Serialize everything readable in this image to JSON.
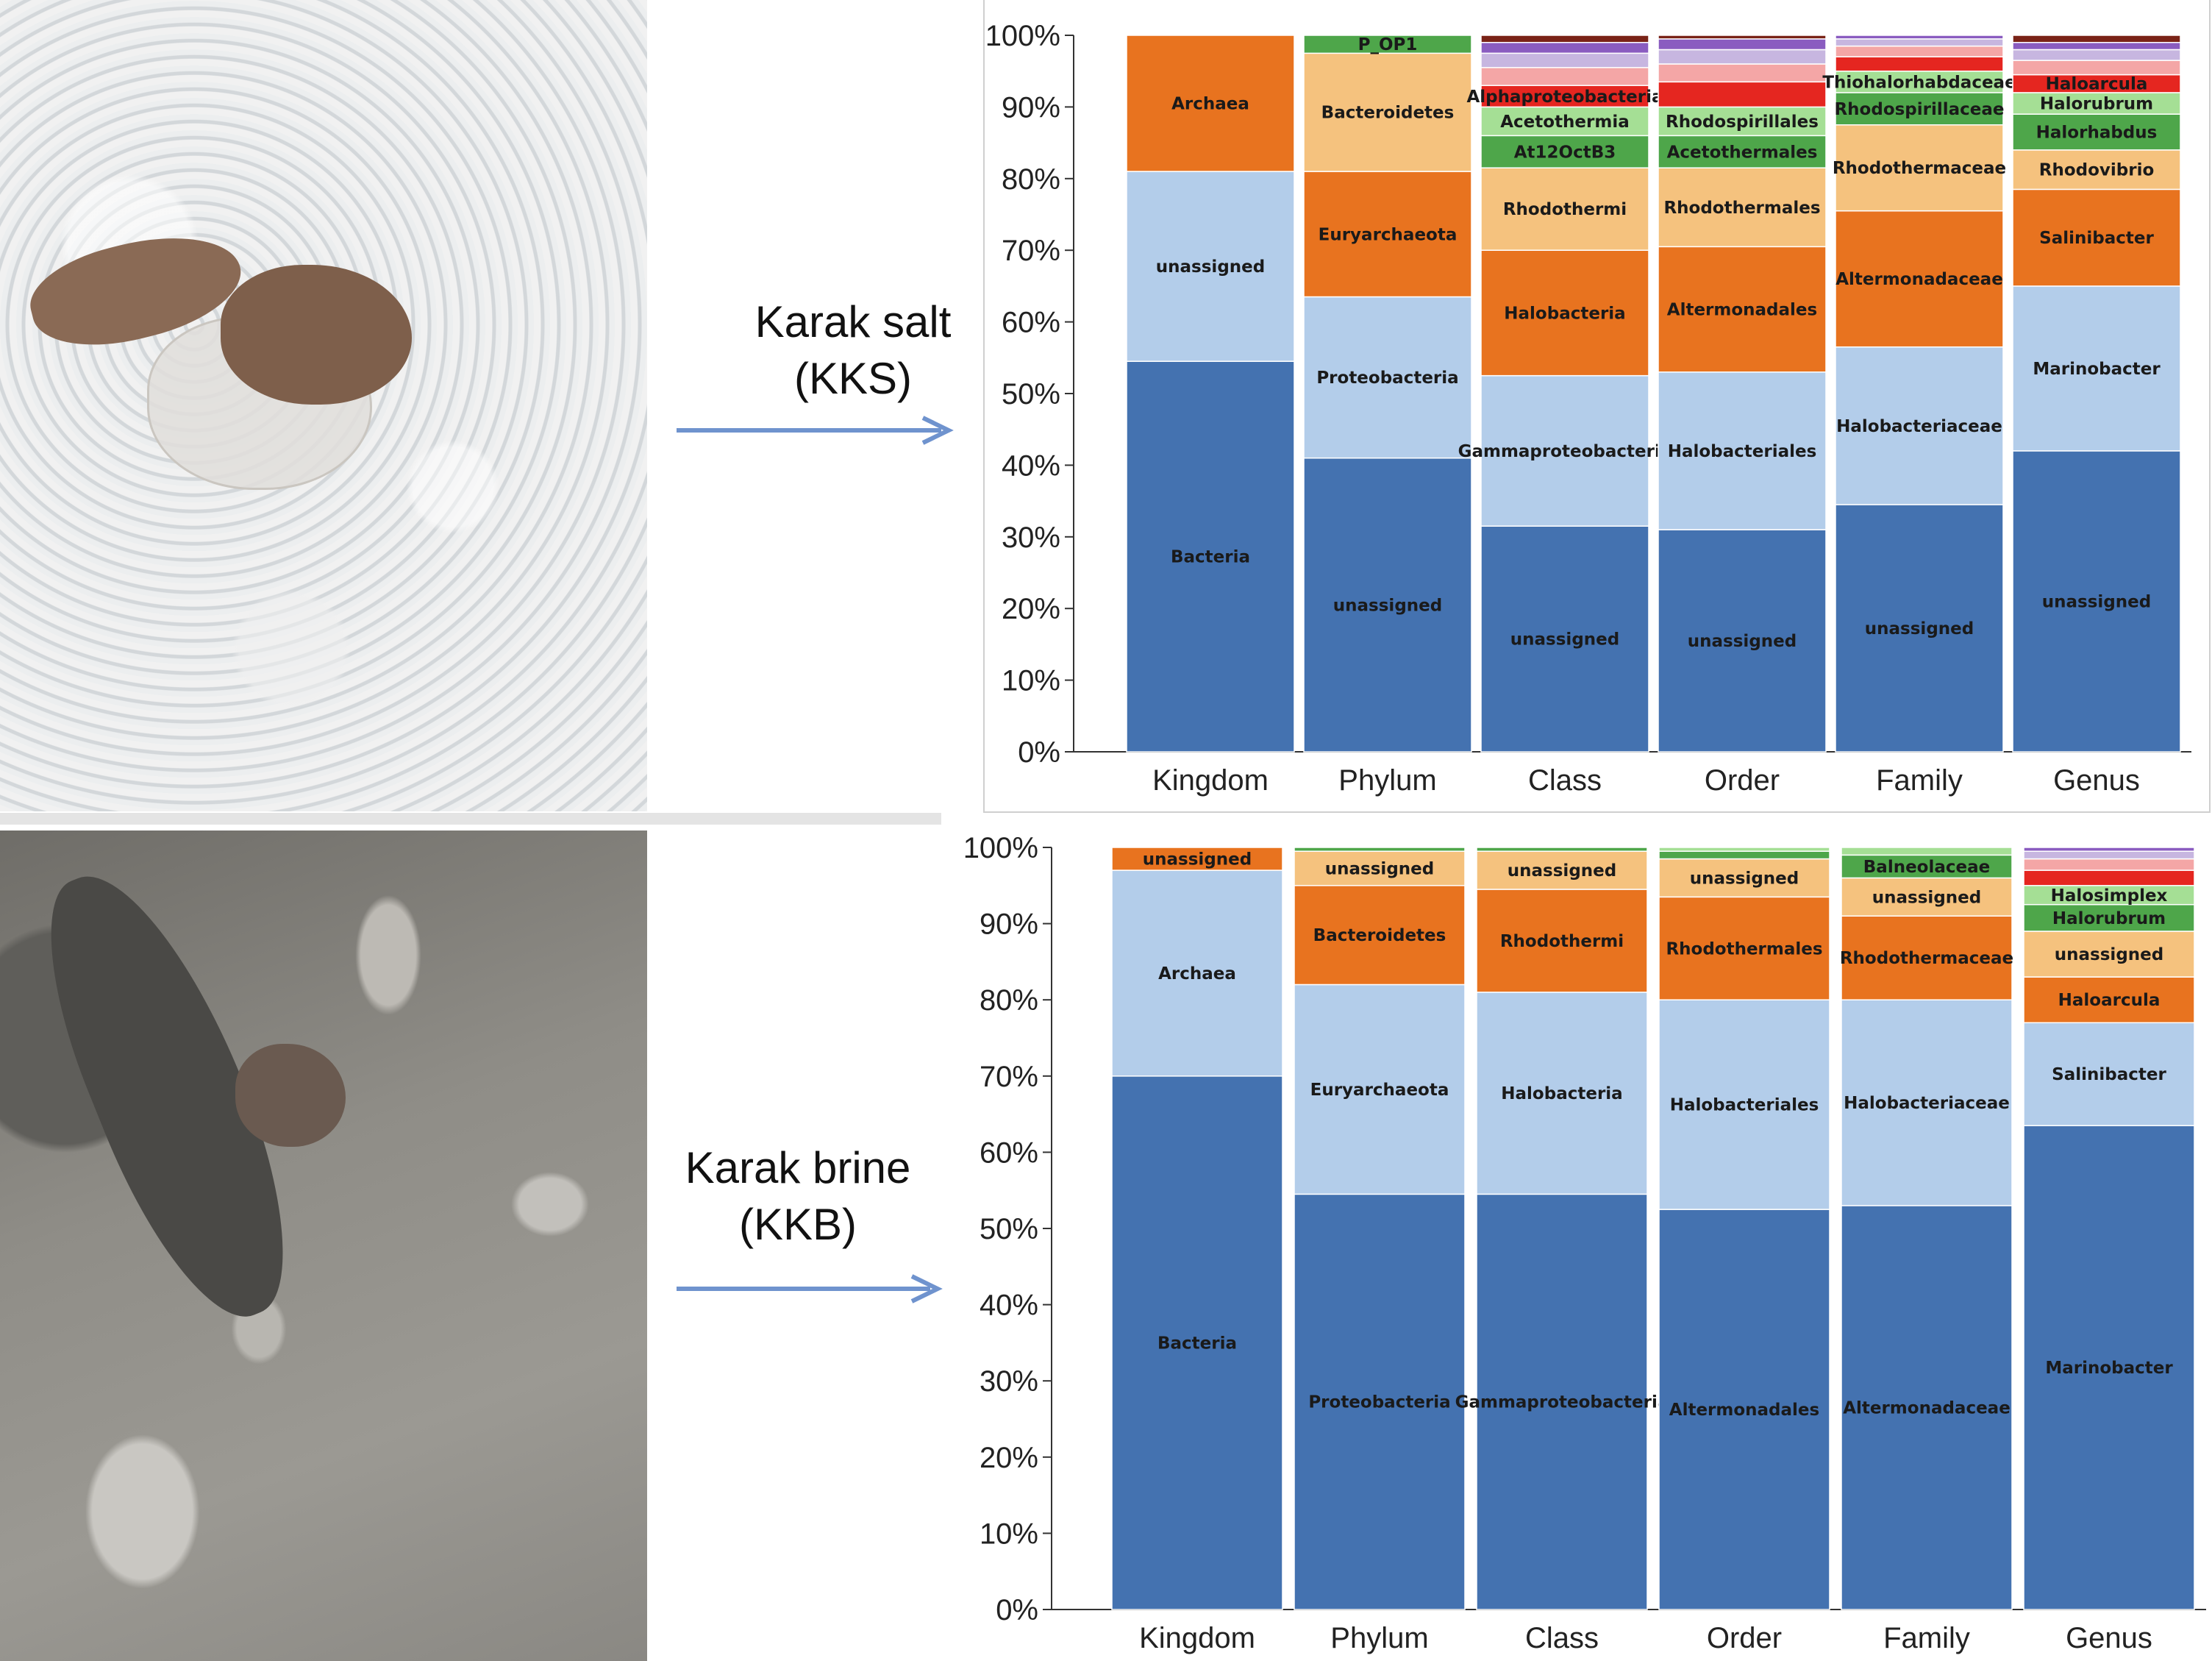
{
  "captions": {
    "salt_line1": "Karak salt",
    "salt_line2": "(KKS)",
    "brine_line1": "Karak brine",
    "brine_line2": "(KKB)"
  },
  "colors": {
    "dark_blue": "#4472B0",
    "light_blue": "#B3CDEA",
    "orange": "#E8731F",
    "peach": "#F5C27E",
    "dark_green": "#4EA64A",
    "light_green": "#A5DF95",
    "red": "#E52620",
    "pink": "#F4A6A6",
    "lavender": "#C7B6E0",
    "purple": "#8A5CC0",
    "brown": "#7A2317",
    "arrow": "#6F93CE"
  },
  "chart_data": [
    {
      "type": "bar",
      "stacked": true,
      "ylim": [
        0,
        100
      ],
      "yticks": [
        "0%",
        "10%",
        "20%",
        "30%",
        "40%",
        "50%",
        "60%",
        "70%",
        "80%",
        "90%",
        "100%"
      ],
      "categories": [
        "Kingdom",
        "Phylum",
        "Class",
        "Order",
        "Family",
        "Genus"
      ],
      "stacks": [
        [
          {
            "value": 54.5,
            "color": "dark_blue",
            "label": "Bacteria"
          },
          {
            "value": 26.5,
            "color": "light_blue",
            "label": "unassigned"
          },
          {
            "value": 19,
            "color": "orange",
            "label": "Archaea"
          }
        ],
        [
          {
            "value": 41,
            "color": "dark_blue",
            "label": "unassigned"
          },
          {
            "value": 22.5,
            "color": "light_blue",
            "label": "Proteobacteria"
          },
          {
            "value": 17.5,
            "color": "orange",
            "label": "Euryarchaeota"
          },
          {
            "value": 16.5,
            "color": "peach",
            "label": "Bacteroidetes"
          },
          {
            "value": 2.5,
            "color": "dark_green",
            "label": "P_OP1"
          }
        ],
        [
          {
            "value": 31.5,
            "color": "dark_blue",
            "label": "unassigned"
          },
          {
            "value": 21,
            "color": "light_blue",
            "label": "Gammaproteobacteria"
          },
          {
            "value": 17.5,
            "color": "orange",
            "label": "Halobacteria"
          },
          {
            "value": 11.5,
            "color": "peach",
            "label": "Rhodothermi"
          },
          {
            "value": 4.5,
            "color": "dark_green",
            "label": "At12OctB3"
          },
          {
            "value": 4,
            "color": "light_green",
            "label": "Acetothermia"
          },
          {
            "value": 3,
            "color": "red",
            "label": "Alphaproteobacteria"
          },
          {
            "value": 2.5,
            "color": "pink",
            "label": ""
          },
          {
            "value": 2,
            "color": "lavender",
            "label": ""
          },
          {
            "value": 1.5,
            "color": "purple",
            "label": ""
          },
          {
            "value": 1,
            "color": "brown",
            "label": ""
          }
        ],
        [
          {
            "value": 31,
            "color": "dark_blue",
            "label": "unassigned"
          },
          {
            "value": 22,
            "color": "light_blue",
            "label": "Halobacteriales"
          },
          {
            "value": 17.5,
            "color": "orange",
            "label": "Altermonadales"
          },
          {
            "value": 11,
            "color": "peach",
            "label": "Rhodothermales"
          },
          {
            "value": 4.5,
            "color": "dark_green",
            "label": "Acetothermales"
          },
          {
            "value": 4,
            "color": "light_green",
            "label": "Rhodospirillales"
          },
          {
            "value": 3.5,
            "color": "red",
            "label": ""
          },
          {
            "value": 2.5,
            "color": "pink",
            "label": ""
          },
          {
            "value": 2,
            "color": "lavender",
            "label": ""
          },
          {
            "value": 1.5,
            "color": "purple",
            "label": ""
          },
          {
            "value": 0.5,
            "color": "brown",
            "label": ""
          }
        ],
        [
          {
            "value": 34.5,
            "color": "dark_blue",
            "label": "unassigned"
          },
          {
            "value": 22,
            "color": "light_blue",
            "label": "Halobacteriaceae"
          },
          {
            "value": 19,
            "color": "orange",
            "label": "Altermonadaceae"
          },
          {
            "value": 12,
            "color": "peach",
            "label": "Rhodothermaceae"
          },
          {
            "value": 4.5,
            "color": "dark_green",
            "label": "Rhodospirillaceae"
          },
          {
            "value": 3,
            "color": "light_green",
            "label": "Thiohalorhabdaceae"
          },
          {
            "value": 2,
            "color": "red",
            "label": ""
          },
          {
            "value": 1.5,
            "color": "pink",
            "label": ""
          },
          {
            "value": 1,
            "color": "lavender",
            "label": ""
          },
          {
            "value": 0.5,
            "color": "purple",
            "label": ""
          }
        ],
        [
          {
            "value": 42,
            "color": "dark_blue",
            "label": "unassigned"
          },
          {
            "value": 23,
            "color": "light_blue",
            "label": "Marinobacter"
          },
          {
            "value": 13.5,
            "color": "orange",
            "label": "Salinibacter"
          },
          {
            "value": 5.5,
            "color": "peach",
            "label": "Rhodovibrio"
          },
          {
            "value": 5,
            "color": "dark_green",
            "label": "Halorhabdus"
          },
          {
            "value": 3,
            "color": "light_green",
            "label": "Halorubrum"
          },
          {
            "value": 2.5,
            "color": "red",
            "label": "Haloarcula"
          },
          {
            "value": 2,
            "color": "pink",
            "label": ""
          },
          {
            "value": 1.5,
            "color": "lavender",
            "label": ""
          },
          {
            "value": 1,
            "color": "purple",
            "label": ""
          },
          {
            "value": 1,
            "color": "brown",
            "label": ""
          }
        ]
      ]
    },
    {
      "type": "bar",
      "stacked": true,
      "ylim": [
        0,
        100
      ],
      "yticks": [
        "0%",
        "10%",
        "20%",
        "30%",
        "40%",
        "50%",
        "60%",
        "70%",
        "80%",
        "90%",
        "100%"
      ],
      "categories": [
        "Kingdom",
        "Phylum",
        "Class",
        "Order",
        "Family",
        "Genus"
      ],
      "stacks": [
        [
          {
            "value": 70,
            "color": "dark_blue",
            "label": "Bacteria"
          },
          {
            "value": 27,
            "color": "light_blue",
            "label": "Archaea"
          },
          {
            "value": 3,
            "color": "orange",
            "label": "unassigned"
          }
        ],
        [
          {
            "value": 54.5,
            "color": "dark_blue",
            "label": "Proteobacteria"
          },
          {
            "value": 27.5,
            "color": "light_blue",
            "label": "Euryarchaeota"
          },
          {
            "value": 13,
            "color": "orange",
            "label": "Bacteroidetes"
          },
          {
            "value": 4.5,
            "color": "peach",
            "label": "unassigned"
          },
          {
            "value": 0.5,
            "color": "dark_green",
            "label": ""
          }
        ],
        [
          {
            "value": 54.5,
            "color": "dark_blue",
            "label": "Gammaproteobacteria"
          },
          {
            "value": 26.5,
            "color": "light_blue",
            "label": "Halobacteria"
          },
          {
            "value": 13.5,
            "color": "orange",
            "label": "Rhodothermi"
          },
          {
            "value": 5,
            "color": "peach",
            "label": "unassigned"
          },
          {
            "value": 0.5,
            "color": "dark_green",
            "label": ""
          }
        ],
        [
          {
            "value": 52.5,
            "color": "dark_blue",
            "label": "Altermonadales"
          },
          {
            "value": 27.5,
            "color": "light_blue",
            "label": "Halobacteriales"
          },
          {
            "value": 13.5,
            "color": "orange",
            "label": "Rhodothermales"
          },
          {
            "value": 5,
            "color": "peach",
            "label": "unassigned"
          },
          {
            "value": 1,
            "color": "dark_green",
            "label": ""
          },
          {
            "value": 0.5,
            "color": "light_green",
            "label": ""
          }
        ],
        [
          {
            "value": 53,
            "color": "dark_blue",
            "label": "Altermonadaceae"
          },
          {
            "value": 27,
            "color": "light_blue",
            "label": "Halobacteriaceae"
          },
          {
            "value": 11,
            "color": "orange",
            "label": "Rhodothermaceae"
          },
          {
            "value": 5,
            "color": "peach",
            "label": "unassigned"
          },
          {
            "value": 3,
            "color": "dark_green",
            "label": "Balneolaceae"
          },
          {
            "value": 1,
            "color": "light_green",
            "label": ""
          }
        ],
        [
          {
            "value": 63.5,
            "color": "dark_blue",
            "label": "Marinobacter"
          },
          {
            "value": 13.5,
            "color": "light_blue",
            "label": "Salinibacter"
          },
          {
            "value": 6,
            "color": "orange",
            "label": "Haloarcula"
          },
          {
            "value": 6,
            "color": "peach",
            "label": "unassigned"
          },
          {
            "value": 3.5,
            "color": "dark_green",
            "label": "Halorubrum"
          },
          {
            "value": 2.5,
            "color": "light_green",
            "label": "Halosimplex"
          },
          {
            "value": 2,
            "color": "red",
            "label": ""
          },
          {
            "value": 1.5,
            "color": "pink",
            "label": ""
          },
          {
            "value": 1,
            "color": "lavender",
            "label": ""
          },
          {
            "value": 0.5,
            "color": "purple",
            "label": ""
          }
        ]
      ]
    }
  ]
}
